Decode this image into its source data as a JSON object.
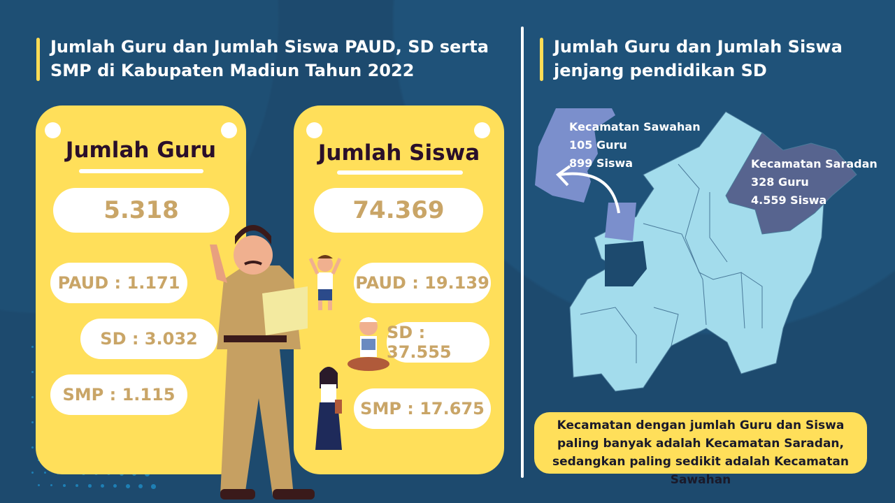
{
  "left_title": "Jumlah Guru dan Jumlah Siswa PAUD, SD serta SMP di Kabupaten Madiun Tahun 2022",
  "right_title": "Jumlah Guru dan Jumlah Siswa jenjang pendidikan SD",
  "guru_card": {
    "title": "Jumlah Guru",
    "total": "5.318",
    "paud": "PAUD : 1.171",
    "sd": "SD : 3.032",
    "smp": "SMP : 1.115"
  },
  "siswa_card": {
    "title": "Jumlah Siswa",
    "total": "74.369",
    "paud": "PAUD : 19.139",
    "sd": "SD : 37.555",
    "smp": "SMP : 17.675"
  },
  "map": {
    "sawahan": {
      "name": "Kecamatan Sawahan",
      "guru": "105 Guru",
      "siswa": "899 Siswa",
      "color": "#7b8fcc"
    },
    "saradan": {
      "name": "Kecamatan Saradan",
      "guru": "328 Guru",
      "siswa": "4.559 Siswa",
      "color": "#57648f"
    },
    "base_color": "#a3dcec"
  },
  "note": "Kecamatan dengan jumlah Guru dan Siswa paling banyak adalah Kecamatan Saradan, sedangkan paling sedikit adalah Kecamatan Sawahan",
  "colors": {
    "background": "#1d4a6e",
    "card": "#ffdf5a",
    "value_text": "#c9a567",
    "accent": "#ffdc55"
  }
}
